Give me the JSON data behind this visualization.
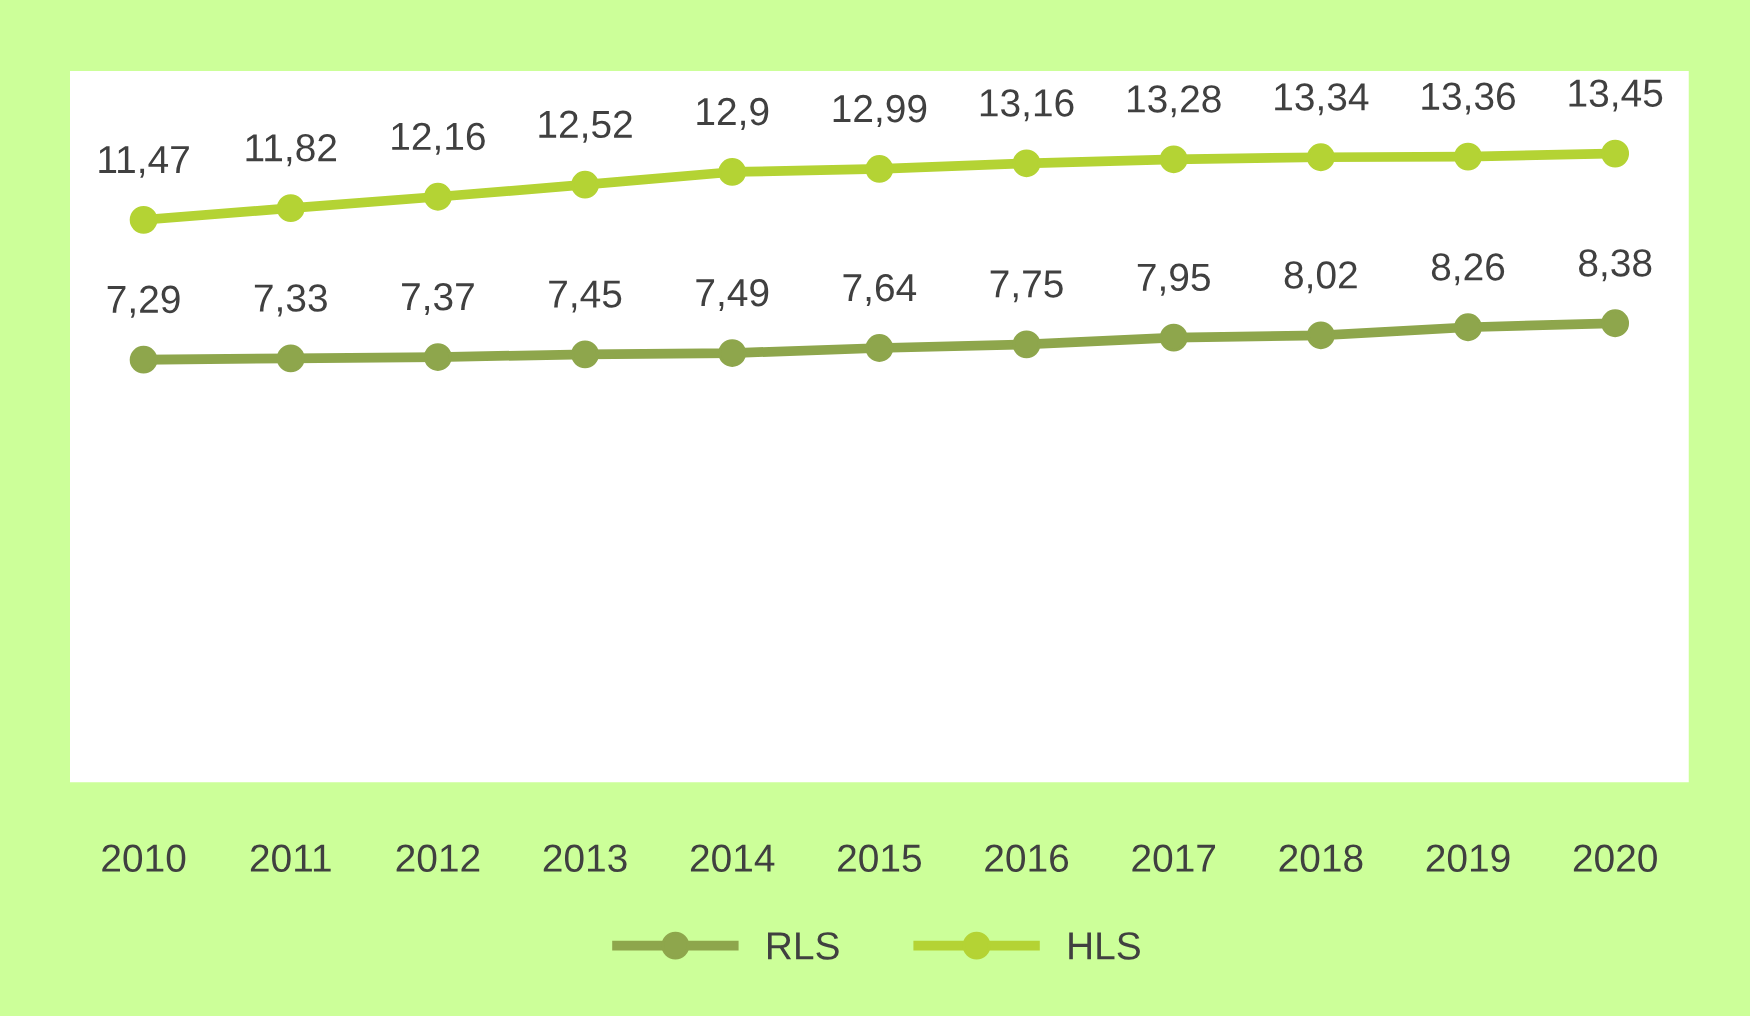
{
  "chart_data": {
    "type": "line",
    "categories": [
      "2010",
      "2011",
      "2012",
      "2013",
      "2014",
      "2015",
      "2016",
      "2017",
      "2018",
      "2019",
      "2020"
    ],
    "series": [
      {
        "name": "RLS",
        "color": "#8ea64c",
        "values": [
          7.29,
          7.33,
          7.37,
          7.45,
          7.49,
          7.64,
          7.75,
          7.95,
          8.02,
          8.26,
          8.38
        ],
        "value_labels": [
          "7,29",
          "7,33",
          "7,37",
          "7,45",
          "7,49",
          "7,64",
          "7,75",
          "7,95",
          "8,02",
          "8,26",
          "8,38"
        ]
      },
      {
        "name": "HLS",
        "color": "#b4d334",
        "values": [
          11.47,
          11.82,
          12.16,
          12.52,
          12.9,
          12.99,
          13.16,
          13.28,
          13.34,
          13.36,
          13.45
        ],
        "value_labels": [
          "11,47",
          "11,82",
          "12,16",
          "12,52",
          "12,9",
          "12,99",
          "13,16",
          "13,28",
          "13,34",
          "13,36",
          "13,45"
        ]
      }
    ],
    "marker": "circle",
    "line_style": "solid",
    "legend": "bottom",
    "grid": false,
    "tick_labels": "x"
  }
}
